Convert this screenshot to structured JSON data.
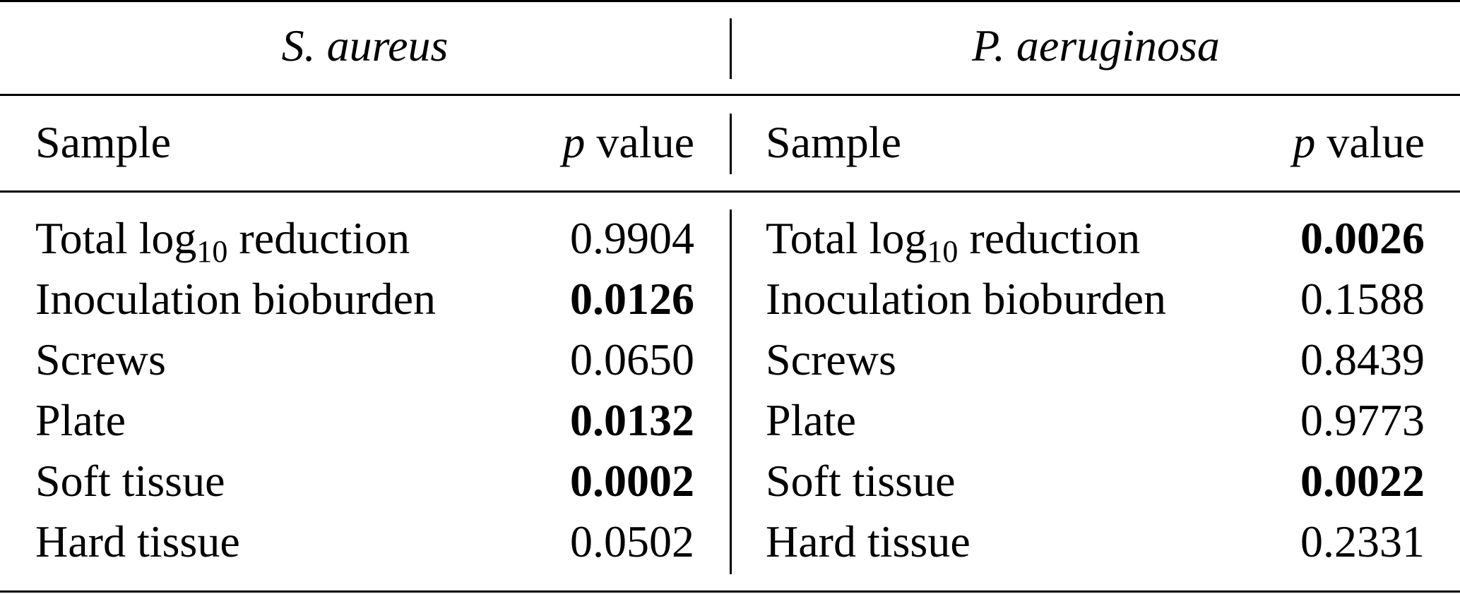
{
  "table": {
    "groups": [
      {
        "name": "S. aureus",
        "header_sample": "Sample",
        "header_p_italic": "p",
        "header_p_rest": " value",
        "rows": [
          {
            "sample": "Total log",
            "sample_sub": "10",
            "sample_tail": " reduction",
            "p": "0.9904",
            "bold": false
          },
          {
            "sample": "Inoculation bioburden",
            "p": "0.0126",
            "bold": true
          },
          {
            "sample": "Screws",
            "p": "0.0650",
            "bold": false
          },
          {
            "sample": "Plate",
            "p": "0.0132",
            "bold": true
          },
          {
            "sample": "Soft tissue",
            "p": "0.0002",
            "bold": true
          },
          {
            "sample": "Hard tissue",
            "p": "0.0502",
            "bold": false
          }
        ]
      },
      {
        "name": "P. aeruginosa",
        "header_sample": "Sample",
        "header_p_italic": "p",
        "header_p_rest": " value",
        "rows": [
          {
            "sample": "Total log",
            "sample_sub": "10",
            "sample_tail": " reduction",
            "p": "0.0026",
            "bold": true
          },
          {
            "sample": "Inoculation bioburden",
            "p": "0.1588",
            "bold": false
          },
          {
            "sample": "Screws",
            "p": "0.8439",
            "bold": false
          },
          {
            "sample": "Plate",
            "p": "0.9773",
            "bold": false
          },
          {
            "sample": "Soft tissue",
            "p": "0.0022",
            "bold": true
          },
          {
            "sample": "Hard tissue",
            "p": "0.2331",
            "bold": false
          }
        ]
      }
    ]
  }
}
